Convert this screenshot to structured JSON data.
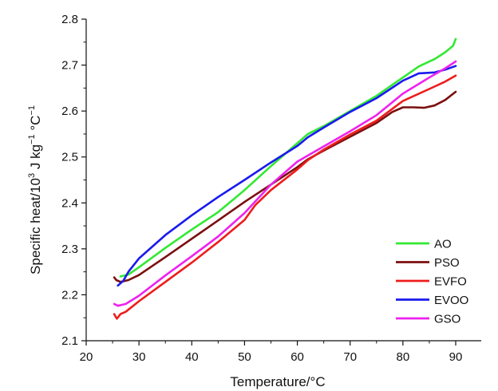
{
  "chart_data": {
    "type": "line",
    "xlabel": "Temperature/°C",
    "ylabel": "Specific heat/10",
    "ylabel_sup1": "3",
    "ylabel_mid": " J kg",
    "ylabel_sup2": "−1",
    "ylabel_end": " °C",
    "ylabel_sup3": "−1",
    "xlim": [
      20,
      95
    ],
    "ylim": [
      2.1,
      2.8
    ],
    "xticks": [
      20,
      30,
      40,
      50,
      60,
      70,
      80,
      90
    ],
    "yticks": [
      2.1,
      2.2,
      2.3,
      2.4,
      2.5,
      2.6,
      2.7,
      2.8
    ],
    "grid": false,
    "legend_position": "bottom-right",
    "series": [
      {
        "name": "AO",
        "color": "#33e833",
        "x": [
          26.5,
          28,
          30,
          35,
          40,
          45,
          50,
          55,
          58,
          60,
          62,
          65,
          70,
          75,
          80,
          83,
          86,
          88,
          89.5,
          90
        ],
        "y": [
          2.24,
          2.244,
          2.26,
          2.302,
          2.342,
          2.38,
          2.428,
          2.48,
          2.51,
          2.53,
          2.55,
          2.567,
          2.6,
          2.633,
          2.673,
          2.697,
          2.713,
          2.728,
          2.742,
          2.757
        ]
      },
      {
        "name": "PSO",
        "color": "#7b0f0f",
        "x": [
          25.3,
          25.7,
          26.5,
          28,
          30,
          35,
          40,
          45,
          50,
          55,
          60,
          62,
          65,
          70,
          75,
          78,
          80,
          82,
          84,
          86,
          88,
          90
        ],
        "y": [
          2.238,
          2.232,
          2.228,
          2.232,
          2.243,
          2.282,
          2.322,
          2.362,
          2.402,
          2.44,
          2.478,
          2.495,
          2.514,
          2.544,
          2.574,
          2.598,
          2.608,
          2.608,
          2.607,
          2.612,
          2.624,
          2.642
        ]
      },
      {
        "name": "EVFO",
        "color": "#ee1c1c",
        "x": [
          25.3,
          25.8,
          26.5,
          27.5,
          30,
          35,
          40,
          45,
          50,
          52,
          55,
          60,
          62,
          65,
          70,
          75,
          80,
          85,
          88,
          90
        ],
        "y": [
          2.158,
          2.148,
          2.158,
          2.163,
          2.186,
          2.228,
          2.27,
          2.315,
          2.363,
          2.395,
          2.428,
          2.473,
          2.493,
          2.516,
          2.549,
          2.579,
          2.622,
          2.648,
          2.664,
          2.677
        ]
      },
      {
        "name": "EVOO",
        "color": "#1a1aee",
        "x": [
          26,
          27,
          28,
          30,
          35,
          40,
          45,
          50,
          55,
          60,
          62,
          65,
          70,
          75,
          80,
          83,
          86,
          88,
          90
        ],
        "y": [
          2.22,
          2.23,
          2.25,
          2.279,
          2.33,
          2.373,
          2.413,
          2.45,
          2.488,
          2.524,
          2.543,
          2.564,
          2.598,
          2.628,
          2.666,
          2.682,
          2.684,
          2.69,
          2.698
        ]
      },
      {
        "name": "GSO",
        "color": "#ee22ee",
        "x": [
          25.3,
          26,
          27.5,
          30,
          35,
          40,
          45,
          50,
          55,
          60,
          65,
          70,
          75,
          80,
          85,
          88,
          90
        ],
        "y": [
          2.18,
          2.176,
          2.18,
          2.198,
          2.242,
          2.284,
          2.327,
          2.378,
          2.44,
          2.49,
          2.523,
          2.556,
          2.591,
          2.638,
          2.673,
          2.693,
          2.708
        ]
      }
    ]
  }
}
